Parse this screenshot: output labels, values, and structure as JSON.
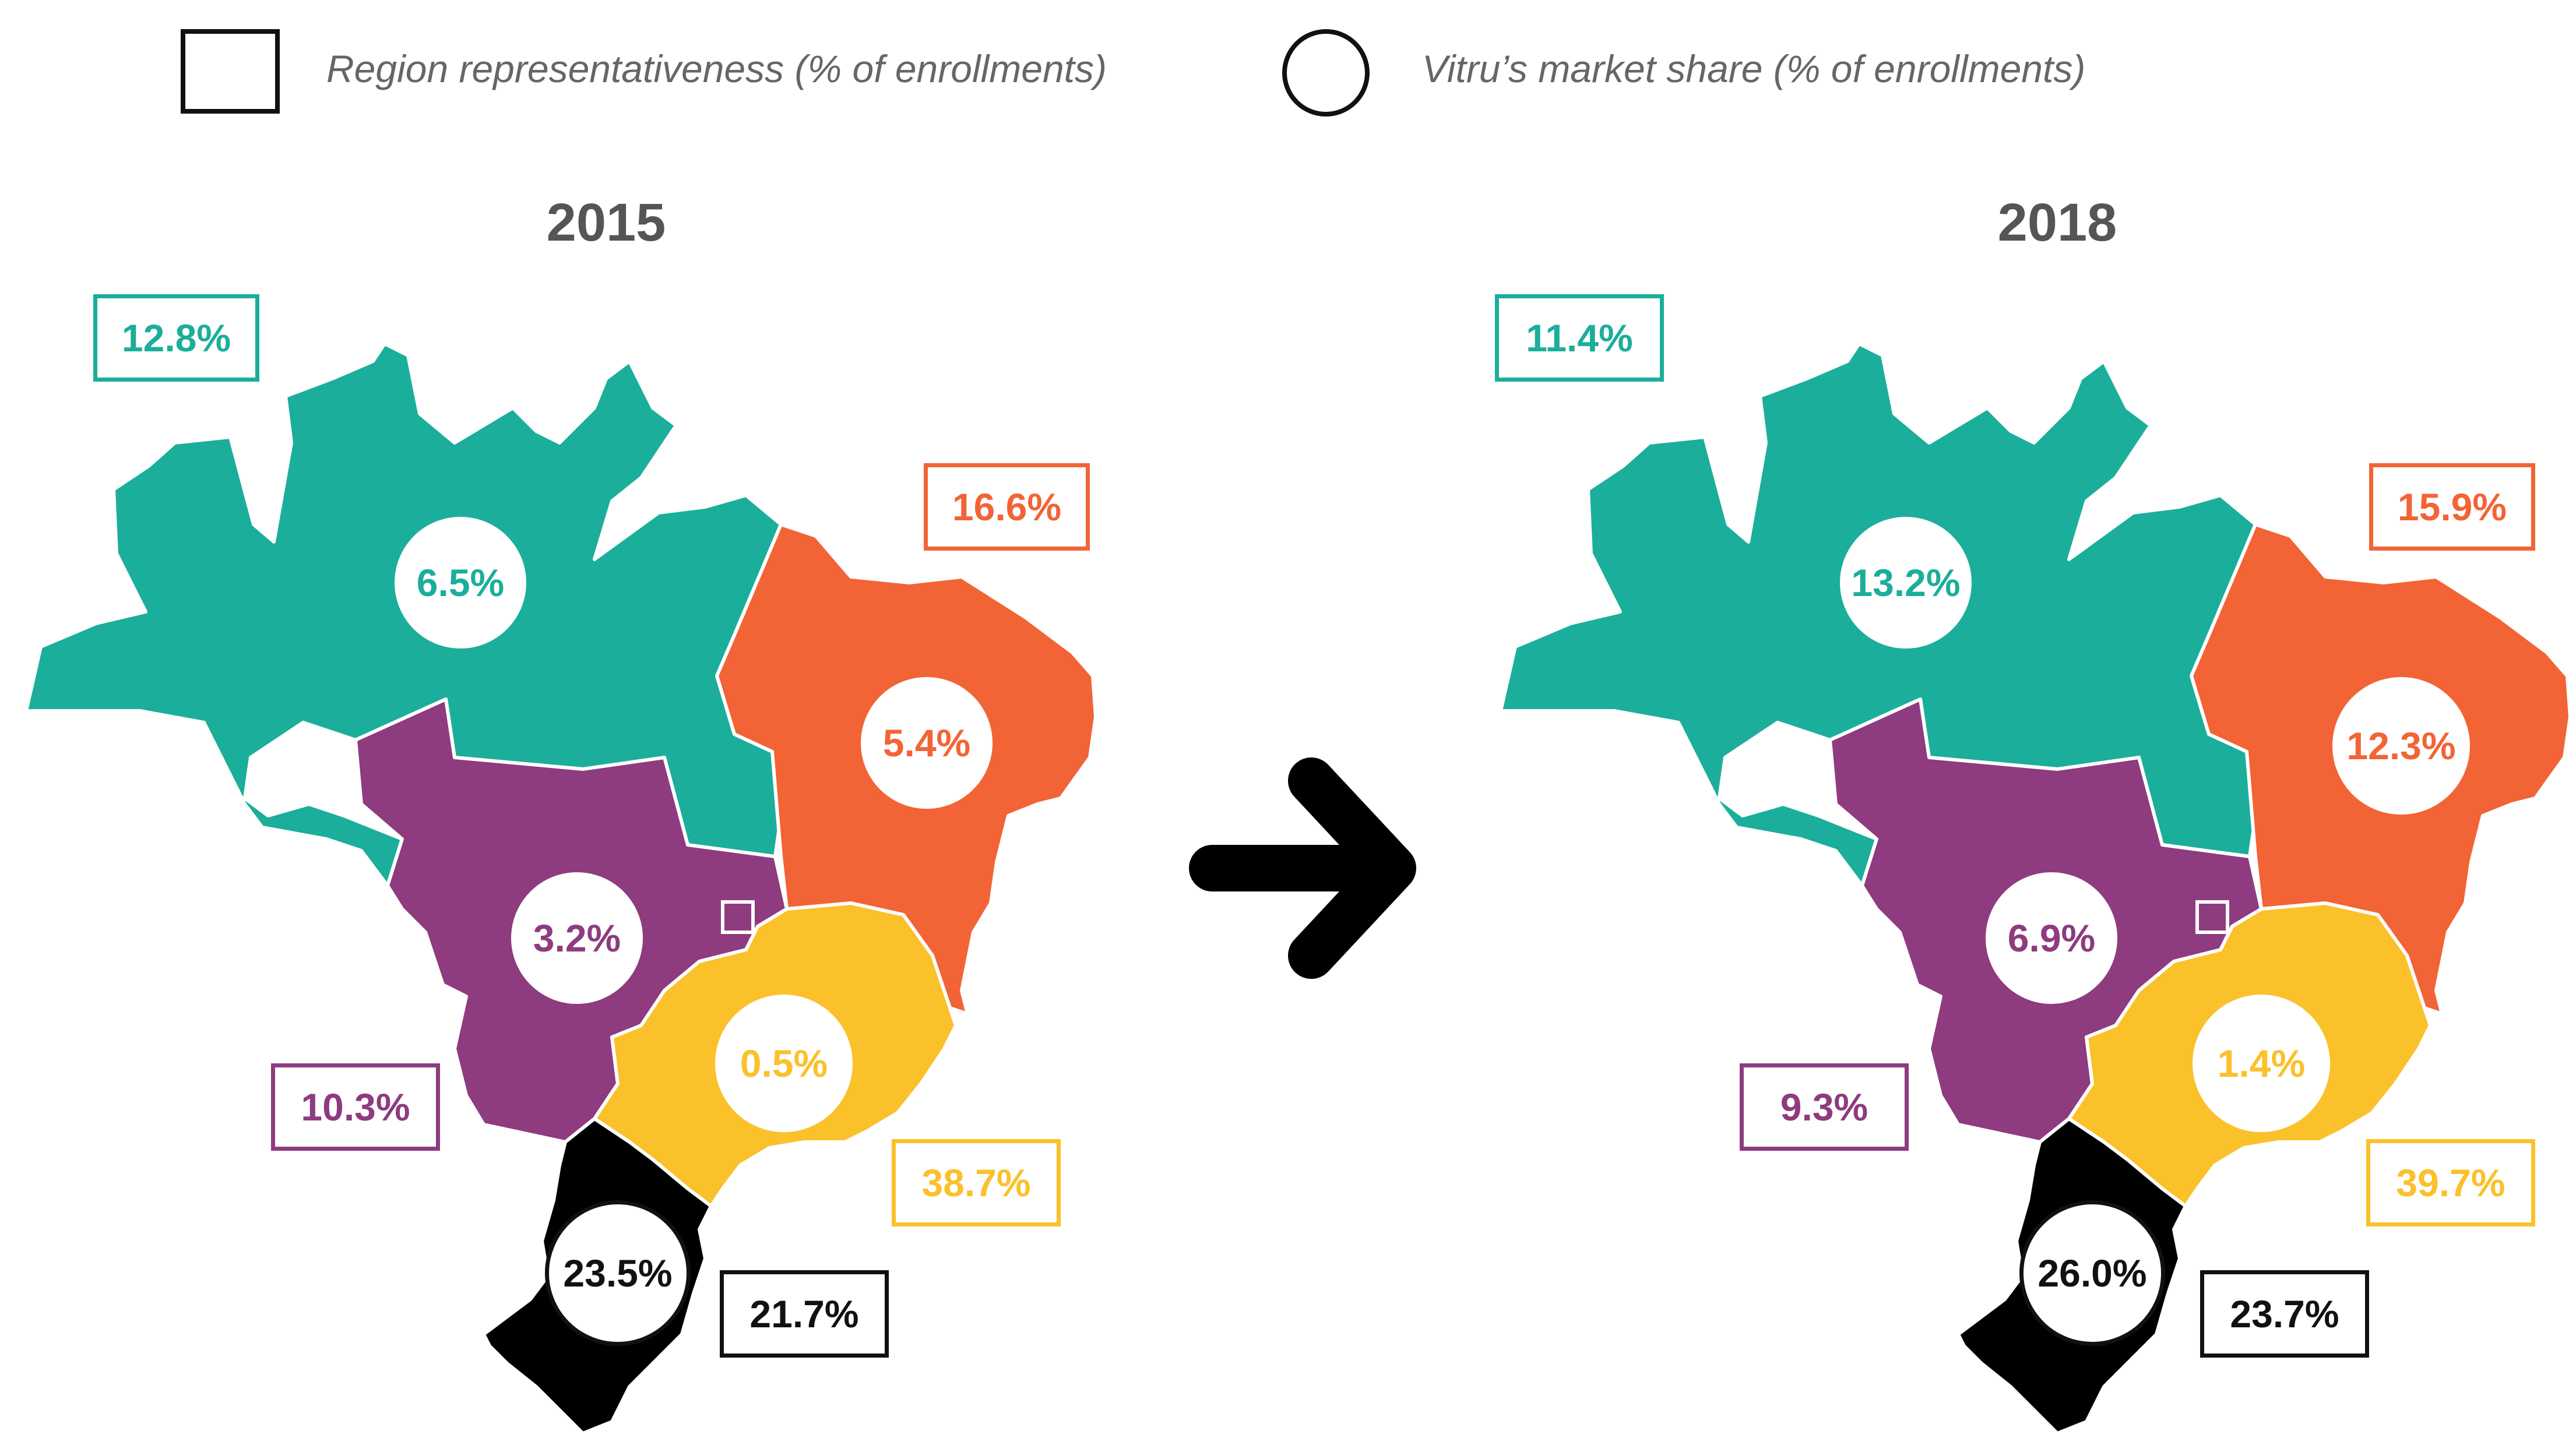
{
  "legend": {
    "representativeness_label": "Region representativeness (% of enrollments)",
    "market_share_label": "Vitru’s market share (% of enrollments)"
  },
  "colors": {
    "north": "#1BAE9B",
    "northeast": "#F26435",
    "center_west": "#8E3B7F",
    "southeast": "#FBC12B",
    "south": "#000000"
  },
  "maps": [
    {
      "year": "2015",
      "north": {
        "representativeness": "12.8%",
        "market_share": "6.5%"
      },
      "northeast": {
        "representativeness": "16.6%",
        "market_share": "5.4%"
      },
      "center_west": {
        "representativeness": "10.3%",
        "market_share": "3.2%"
      },
      "southeast": {
        "representativeness": "38.7%",
        "market_share": "0.5%"
      },
      "south": {
        "representativeness": "21.7%",
        "market_share": "23.5%"
      }
    },
    {
      "year": "2018",
      "north": {
        "representativeness": "11.4%",
        "market_share": "13.2%"
      },
      "northeast": {
        "representativeness": "15.9%",
        "market_share": "12.3%"
      },
      "center_west": {
        "representativeness": "9.3%",
        "market_share": "6.9%"
      },
      "southeast": {
        "representativeness": "39.7%",
        "market_share": "1.4%"
      },
      "south": {
        "representativeness": "23.7%",
        "market_share": "26.0%"
      }
    }
  ],
  "arrow_icon": "right-arrow-icon"
}
